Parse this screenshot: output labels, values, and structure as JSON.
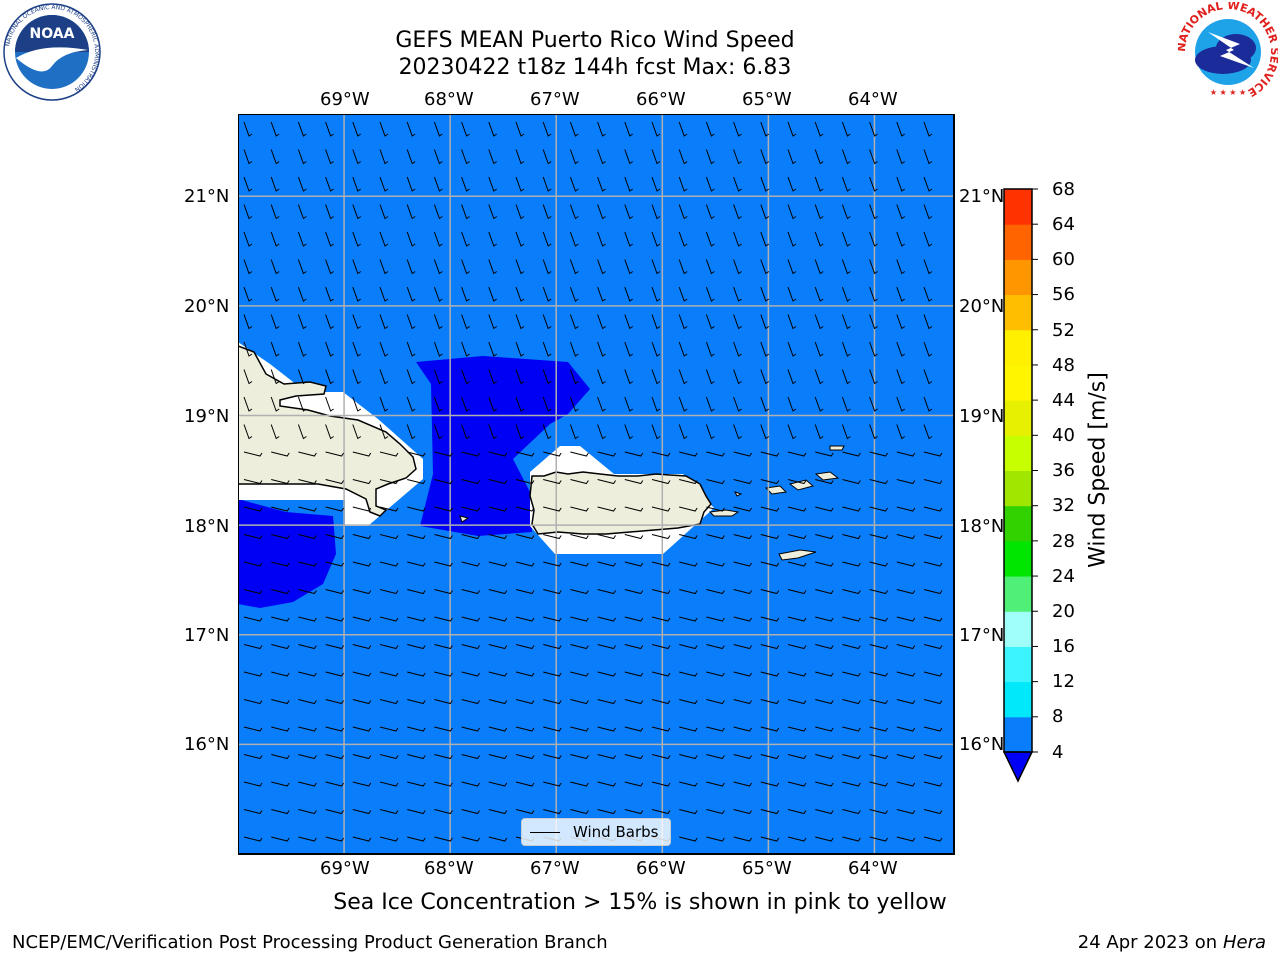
{
  "title": {
    "line1": "GEFS MEAN Puerto Rico Wind Speed",
    "line2": "20230422 t18z 144h fcst   Max: 6.83"
  },
  "map": {
    "lon_ticks": [
      "69°W",
      "68°W",
      "67°W",
      "66°W",
      "65°W",
      "64°W"
    ],
    "lat_ticks": [
      "21°N",
      "20°N",
      "19°N",
      "18°N",
      "17°N",
      "16°N"
    ],
    "extent": {
      "lon_min": -70.0,
      "lon_max": -63.25,
      "lat_min": 15.0,
      "lat_max": 21.75
    },
    "ocean_color": "#0a7efa",
    "low_wind_color": "#0000f5",
    "land_color": "#eeeedd",
    "legend_label": "Wind Barbs"
  },
  "colorbar": {
    "label": "Wind Speed [m/s]",
    "ticks": [
      "68",
      "64",
      "60",
      "56",
      "52",
      "48",
      "44",
      "40",
      "36",
      "32",
      "28",
      "24",
      "20",
      "16",
      "12",
      "8",
      "4"
    ],
    "levels": [
      4,
      8,
      12,
      16,
      20,
      24,
      28,
      32,
      36,
      40,
      44,
      48,
      52,
      56,
      60,
      64,
      68
    ],
    "colors": [
      "#0a7efa",
      "#00e8fa",
      "#3cf4ff",
      "#a0fff8",
      "#50f078",
      "#00e600",
      "#32d200",
      "#a0e600",
      "#c8ff00",
      "#e6f000",
      "#fff500",
      "#fff000",
      "#ffbe00",
      "#ff9600",
      "#ff6400",
      "#ff3200",
      "#ff0000"
    ],
    "under_color": "#0000f5"
  },
  "note": "Sea Ice Concentration > 15% is shown in pink to yellow",
  "footer": {
    "left": "NCEP/EMC/Verification Post Processing Product Generation Branch",
    "date": "24 Apr 2023 on ",
    "machine": "Hera"
  },
  "logos": {
    "noaa_text": "NOAA",
    "noaa_ring": "NATIONAL OCEANIC AND ATMOSPHERIC ADMINISTRATION",
    "noaa_ring_bottom": "U.S. DEPARTMENT OF COMMERCE",
    "nws_ring": "NATIONAL WEATHER SERVICE"
  }
}
